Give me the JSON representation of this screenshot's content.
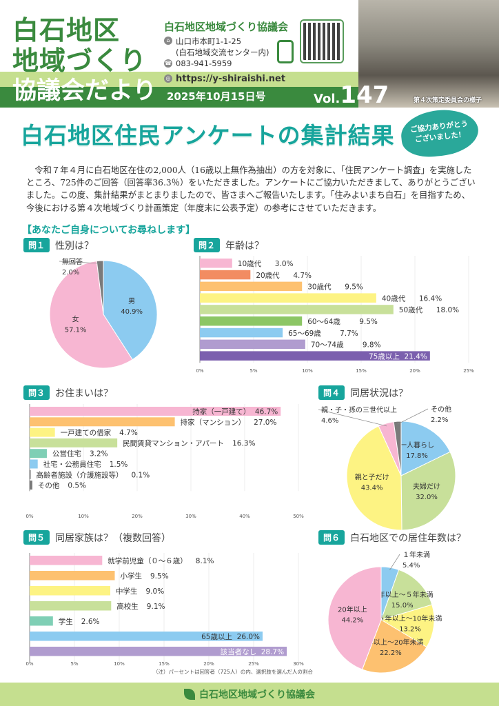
{
  "header": {
    "masthead": [
      "白石地区",
      "地域づくり",
      "協議会だより"
    ],
    "org_name": "白石地区地域づくり協議会",
    "address_line1": "山口市本町1-1-25",
    "address_line2": "(白石地域交流センター内)",
    "phone": "083-941-5959",
    "url": "https://y-shiraishi.net",
    "issue_date": "2025年10月15日号",
    "vol_prefix": "Vol.",
    "vol_number": "147",
    "photo_caption": "第４次策定委員会の様子",
    "icons": [
      "home-icon",
      "phone-icon",
      "globe-icon",
      "qr-code",
      "smartphone-icon"
    ]
  },
  "article": {
    "title": "白石地区住民アンケートの集計結果",
    "bubble": [
      "ご協力ありがとう",
      "ございました！"
    ],
    "intro": "令和７年４月に白石地区在住の2,000人（16歳以上無作為抽出）の方を対象に、「住民アンケート調査」を実施したところ、725件のご回答（回答率36.3％）をいただきました。アンケートにご協力いただきまして、ありがとうございました。この度、集計結果がまとまりましたので、皆さまへご報告いたします。「住みよいまち白石」を目指すため、今後における第４次地域づくり計画策定（年度末に公表予定）の参考にさせていただきます。",
    "section_heading": "【あなたご自身についてお尋ねします】",
    "note": "（注）パーセントは回答者（725人）の内、選択肢を選んだ人の割合"
  },
  "footer": {
    "org_name": "白石地区地域づくり協議会"
  },
  "colors": {
    "green": "#3a8a3e",
    "teal": "#17a59c",
    "light_green": "#c5df8f"
  },
  "chart_data": [
    {
      "id": "q1",
      "type": "pie",
      "badge": "問１",
      "title": "性別は？",
      "slices": [
        {
          "label": "男",
          "value": 40.9,
          "color": "#8ccbf0"
        },
        {
          "label": "女",
          "value": 57.1,
          "color": "#f7b6d2"
        },
        {
          "label": "無回答",
          "value": 2.0,
          "color": "#7a7a7a"
        }
      ]
    },
    {
      "id": "q2",
      "type": "bar",
      "badge": "問２",
      "title": "年齢は？",
      "xlim": [
        0,
        25
      ],
      "ticks": [
        "0%",
        "5%",
        "10%",
        "15%",
        "20%",
        "25%"
      ],
      "grid": true,
      "bars": [
        {
          "label": "10歳代",
          "value": 3.0,
          "color": "#f7b6d2"
        },
        {
          "label": "20歳代",
          "value": 4.7,
          "color": "#f28c62"
        },
        {
          "label": "30歳代",
          "value": 9.5,
          "color": "#fdc170"
        },
        {
          "label": "40歳代",
          "value": 16.4,
          "color": "#fdf383"
        },
        {
          "label": "50歳代",
          "value": 18.0,
          "color": "#c8e09a"
        },
        {
          "label": "60〜64歳",
          "value": 9.5,
          "color": "#8cc665"
        },
        {
          "label": "65〜69歳",
          "value": 7.7,
          "color": "#8ccbf0"
        },
        {
          "label": "70〜74歳",
          "value": 9.8,
          "color": "#b09ccf"
        },
        {
          "label": "75歳以上",
          "value": 21.4,
          "color": "#7b5fae"
        }
      ]
    },
    {
      "id": "q3",
      "type": "bar",
      "badge": "問３",
      "title": "お住まいは？",
      "xlim": [
        0,
        50
      ],
      "ticks": [
        "0%",
        "10%",
        "20%",
        "30%",
        "40%",
        "50%"
      ],
      "grid": true,
      "bars": [
        {
          "label": "持家（一戸建て）",
          "value": 46.7,
          "color": "#f7b6d2"
        },
        {
          "label": "持家（マンション）",
          "value": 27.0,
          "color": "#fdc170"
        },
        {
          "label": "一戸建ての借家",
          "value": 4.7,
          "color": "#fdf383"
        },
        {
          "label": "民間賃貸マンション・アパート",
          "value": 16.3,
          "color": "#c8e09a"
        },
        {
          "label": "公営住宅",
          "value": 3.2,
          "color": "#7fcfb5"
        },
        {
          "label": "社宅・公務員住宅",
          "value": 1.5,
          "color": "#8ccbf0"
        },
        {
          "label": "高齢者施設（介護施設等）",
          "value": 0.1,
          "color": "#7a7a7a"
        },
        {
          "label": "その他",
          "value": 0.5,
          "color": "#7a7a7a"
        }
      ]
    },
    {
      "id": "q4",
      "type": "pie",
      "badge": "問４",
      "title": "同居状況は？",
      "slices": [
        {
          "label": "一人暮らし",
          "value": 17.8,
          "color": "#8ccbf0"
        },
        {
          "label": "夫婦だけ",
          "value": 32.0,
          "color": "#c8e09a"
        },
        {
          "label": "親と子だけ",
          "value": 43.4,
          "color": "#fdf383"
        },
        {
          "label": "親・子・孫の三世代以上",
          "value": 4.6,
          "color": "#f7b6d2"
        },
        {
          "label": "その他",
          "value": 2.2,
          "color": "#7a7a7a"
        }
      ]
    },
    {
      "id": "q5",
      "type": "bar",
      "badge": "問５",
      "title": "同居家族は？（複数回答）",
      "xlim": [
        0,
        30
      ],
      "ticks": [
        "0%",
        "5%",
        "10%",
        "15%",
        "20%",
        "25%",
        "30%"
      ],
      "grid": true,
      "bars": [
        {
          "label": "就学前児童（０〜６歳）",
          "value": 8.1,
          "color": "#f7b6d2"
        },
        {
          "label": "小学生",
          "value": 9.5,
          "color": "#fdc170"
        },
        {
          "label": "中学生",
          "value": 9.0,
          "color": "#fdf383"
        },
        {
          "label": "高校生",
          "value": 9.1,
          "color": "#c8e09a"
        },
        {
          "label": "学生",
          "value": 2.6,
          "color": "#7fcfb5"
        },
        {
          "label": "65歳以上",
          "value": 26.0,
          "color": "#8ccbf0"
        },
        {
          "label": "該当者なし",
          "value": 28.7,
          "color": "#b09ccf"
        }
      ]
    },
    {
      "id": "q6",
      "type": "pie",
      "badge": "問６",
      "title": "白石地区での居住年数は？",
      "slices": [
        {
          "label": "１年未満",
          "value": 5.4,
          "color": "#8ccbf0"
        },
        {
          "label": "１年以上〜５年未満",
          "value": 15.0,
          "color": "#c8e09a"
        },
        {
          "label": "５年以上〜10年未満",
          "value": 13.2,
          "color": "#fdf383"
        },
        {
          "label": "10年以上〜20年未満",
          "value": 22.2,
          "color": "#fdc170"
        },
        {
          "label": "20年以上",
          "value": 44.2,
          "color": "#f7b6d2"
        }
      ]
    }
  ]
}
